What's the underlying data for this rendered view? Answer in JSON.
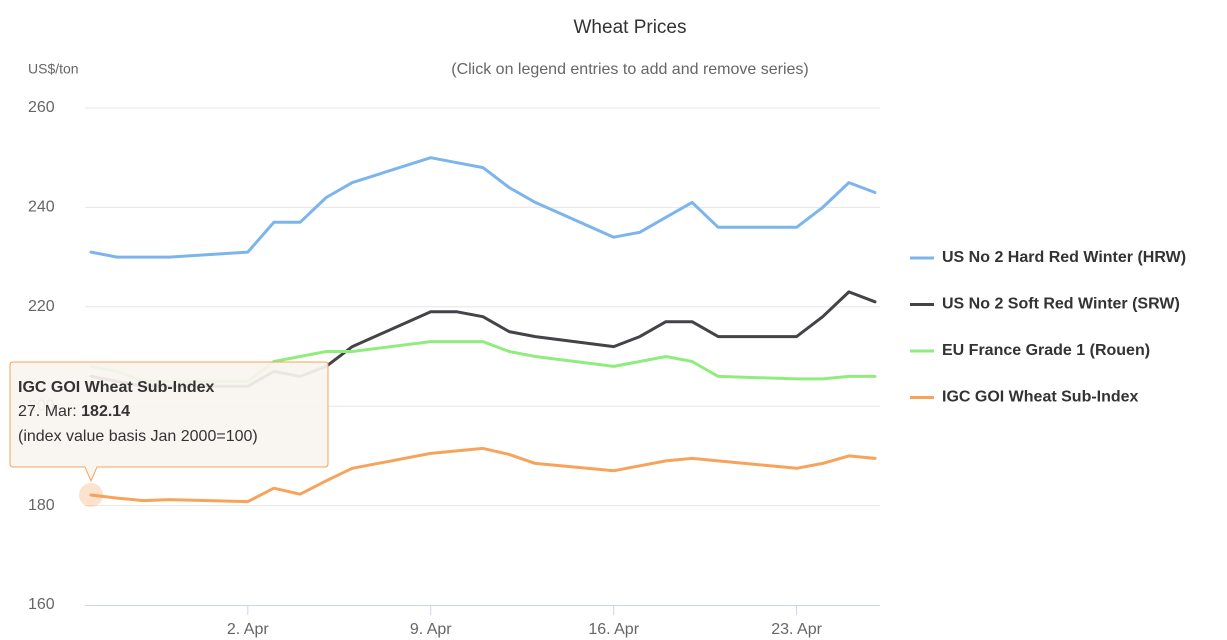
{
  "chart_data": {
    "type": "line",
    "title": "Wheat Prices",
    "subtitle": "(Click on legend entries to add and remove series)",
    "y_axis_label": "US$/ton",
    "x": [
      "27. Mar",
      "28. Mar",
      "29. Mar",
      "30. Mar",
      "2. Apr",
      "3. Apr",
      "4. Apr",
      "5. Apr",
      "6. Apr",
      "9. Apr",
      "10. Apr",
      "11. Apr",
      "12. Apr",
      "13. Apr",
      "16. Apr",
      "17. Apr",
      "18. Apr",
      "19. Apr",
      "20. Apr",
      "23. Apr",
      "24. Apr",
      "25. Apr",
      "26. Apr"
    ],
    "xticks": [
      "2. Apr",
      "9. Apr",
      "16. Apr",
      "23. Apr"
    ],
    "ylim": [
      160,
      260
    ],
    "yticks": [
      160,
      180,
      200,
      220,
      240,
      260
    ],
    "grid": true,
    "legend": "right",
    "series": [
      {
        "name": "US No 2 Hard Red Winter (HRW)",
        "color": "#7cb5ec",
        "values": [
          231,
          230,
          230,
          230,
          231,
          237,
          237,
          242,
          245,
          250,
          249,
          248,
          244,
          241,
          234,
          235,
          238,
          241,
          236,
          236,
          240,
          245,
          243
        ]
      },
      {
        "name": "US No 2 Soft Red Winter (SRW)",
        "color": "#434348",
        "values": [
          206,
          205,
          204,
          204,
          204,
          207,
          206,
          208,
          212,
          219,
          219,
          218,
          215,
          214,
          212,
          214,
          217,
          217,
          214,
          214,
          218,
          223,
          221
        ]
      },
      {
        "name": "EU France Grade 1 (Rouen)",
        "color": "#90ed7d",
        "values": [
          208,
          207,
          205,
          205,
          205,
          209,
          210,
          211,
          211,
          213,
          213,
          213,
          211,
          210,
          208,
          209,
          210,
          209,
          206,
          205.5,
          205.5,
          206,
          206
        ]
      },
      {
        "name": "IGC GOI Wheat Sub-Index",
        "color": "#f7a35c",
        "values": [
          182.14,
          181.5,
          181,
          181.2,
          180.8,
          183.5,
          182.3,
          185,
          187.5,
          190.5,
          191,
          191.5,
          190.3,
          188.5,
          187,
          188,
          189,
          189.5,
          189,
          187.5,
          188.5,
          190,
          189.5
        ]
      }
    ],
    "tooltip": {
      "series": 3,
      "point": 0,
      "note": "(index value basis Jan 2000=100)"
    }
  }
}
